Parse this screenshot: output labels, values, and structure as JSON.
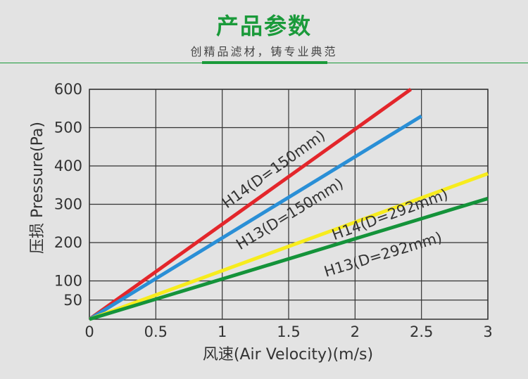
{
  "header": {
    "title": "产品参数",
    "subtitle": "创精品滤材，铸专业典范"
  },
  "colors": {
    "accent": "#1a9a3a",
    "grid": "#333333",
    "plot_bg": "#e3e3e3"
  },
  "chart_data": {
    "type": "line",
    "title": "",
    "xlabel": "风速(Air Velocity)(m/s)",
    "ylabel": "压损 Pressure(Pa)",
    "xlim": [
      0,
      3
    ],
    "ylim": [
      0,
      600
    ],
    "grid": true,
    "x_ticks": [
      0,
      0.5,
      1,
      1.5,
      2,
      2.5,
      3
    ],
    "x_tick_labels": [
      "0",
      "0.5",
      "1",
      "1.5",
      "2",
      "2.5",
      "3"
    ],
    "y_ticks": [
      50,
      100,
      200,
      300,
      400,
      500,
      600
    ],
    "y_tick_labels": [
      "50",
      "100",
      "200",
      "300",
      "400",
      "500",
      "600"
    ],
    "series": [
      {
        "name": "H14(D=150mm)",
        "color": "#e3262b",
        "x": [
          0,
          2.42
        ],
        "y": [
          0,
          600
        ]
      },
      {
        "name": "H13(D=150mm)",
        "color": "#2a8fd6",
        "x": [
          0,
          2.5
        ],
        "y": [
          0,
          530
        ]
      },
      {
        "name": "H14(D=292mm)",
        "color": "#f7ec1d",
        "x": [
          0,
          3
        ],
        "y": [
          0,
          380
        ]
      },
      {
        "name": "H13(D=292mm)",
        "color": "#14933a",
        "x": [
          0,
          3
        ],
        "y": [
          0,
          315
        ]
      }
    ]
  }
}
